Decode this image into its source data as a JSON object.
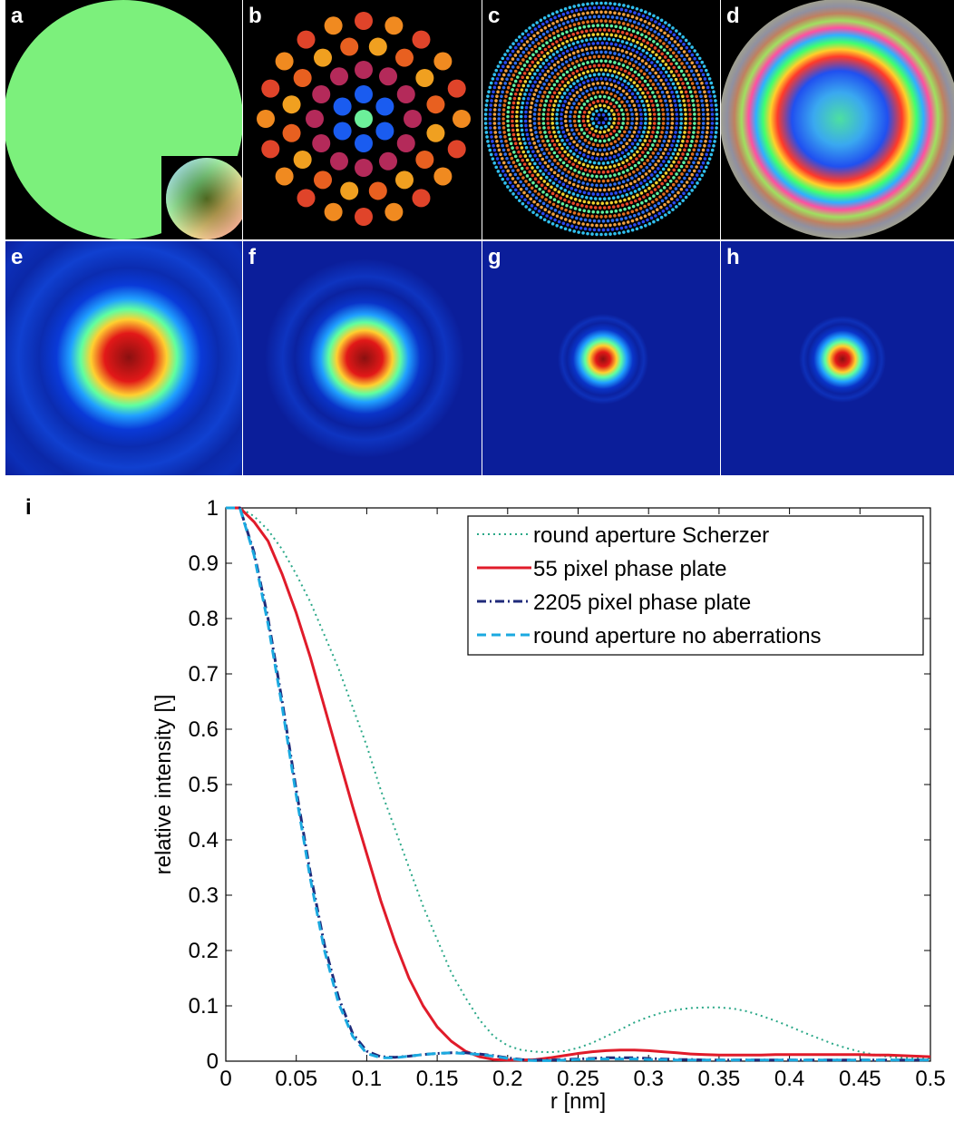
{
  "panels": {
    "a": "a",
    "b": "b",
    "c": "c",
    "d": "d",
    "e": "e",
    "f": "f",
    "g": "g",
    "h": "h",
    "i": "i"
  },
  "colors": {
    "background_top": "#000000",
    "background_bottom": "#0b1e9a",
    "aperture_green": "#7cf07c",
    "scherzer": "#2aa888",
    "pixel55": "#e01b2a",
    "pixel2205": "#1f2a7a",
    "no_aberrations": "#1aa9e0"
  },
  "chart_data": {
    "type": "line",
    "xlabel": "r [nm]",
    "ylabel": "relative intensity [\\]",
    "xlim": [
      0,
      0.5
    ],
    "ylim": [
      0,
      1
    ],
    "xticks": [
      0,
      0.05,
      0.1,
      0.15,
      0.2,
      0.25,
      0.3,
      0.35,
      0.4,
      0.45,
      0.5
    ],
    "xtick_labels": [
      "0",
      "0.05",
      "0.1",
      "0.15",
      "0.2",
      "0.25",
      "0.3",
      "0.35",
      "0.4",
      "0.45",
      "0.5"
    ],
    "yticks": [
      0,
      0.1,
      0.2,
      0.3,
      0.4,
      0.5,
      0.6,
      0.7,
      0.8,
      0.9,
      1
    ],
    "ytick_labels": [
      "0",
      "0.1",
      "0.2",
      "0.3",
      "0.4",
      "0.5",
      "0.6",
      "0.7",
      "0.8",
      "0.9",
      "1"
    ],
    "grid": false,
    "legend_position": "top-right",
    "series": [
      {
        "name": "round aperture Scherzer",
        "style": "dotted",
        "color": "#2aa888",
        "x": [
          0,
          0.01,
          0.02,
          0.03,
          0.04,
          0.05,
          0.06,
          0.07,
          0.08,
          0.09,
          0.1,
          0.11,
          0.12,
          0.13,
          0.14,
          0.15,
          0.16,
          0.17,
          0.18,
          0.19,
          0.2,
          0.21,
          0.22,
          0.23,
          0.24,
          0.25,
          0.26,
          0.27,
          0.28,
          0.29,
          0.3,
          0.31,
          0.32,
          0.33,
          0.34,
          0.35,
          0.36,
          0.37,
          0.38,
          0.39,
          0.4,
          0.41,
          0.42,
          0.43,
          0.44,
          0.45,
          0.46,
          0.47,
          0.48,
          0.49,
          0.5
        ],
        "y": [
          1,
          1,
          0.985,
          0.96,
          0.925,
          0.88,
          0.83,
          0.77,
          0.71,
          0.64,
          0.57,
          0.49,
          0.42,
          0.35,
          0.28,
          0.22,
          0.16,
          0.115,
          0.075,
          0.045,
          0.028,
          0.02,
          0.017,
          0.016,
          0.018,
          0.024,
          0.033,
          0.045,
          0.057,
          0.07,
          0.08,
          0.088,
          0.093,
          0.096,
          0.097,
          0.097,
          0.095,
          0.09,
          0.082,
          0.073,
          0.063,
          0.052,
          0.042,
          0.032,
          0.024,
          0.017,
          0.012,
          0.008,
          0.006,
          0.005,
          0.005
        ]
      },
      {
        "name": "55 pixel phase plate",
        "style": "solid",
        "color": "#e01b2a",
        "x": [
          0,
          0.01,
          0.02,
          0.03,
          0.04,
          0.05,
          0.06,
          0.07,
          0.08,
          0.09,
          0.1,
          0.11,
          0.12,
          0.13,
          0.14,
          0.15,
          0.16,
          0.17,
          0.18,
          0.19,
          0.2,
          0.21,
          0.22,
          0.23,
          0.24,
          0.25,
          0.26,
          0.27,
          0.28,
          0.29,
          0.3,
          0.31,
          0.32,
          0.33,
          0.34,
          0.35,
          0.36,
          0.37,
          0.38,
          0.39,
          0.4,
          0.41,
          0.42,
          0.43,
          0.44,
          0.45,
          0.46,
          0.47,
          0.48,
          0.49,
          0.5
        ],
        "y": [
          1,
          1,
          0.975,
          0.94,
          0.88,
          0.81,
          0.73,
          0.64,
          0.55,
          0.46,
          0.375,
          0.29,
          0.215,
          0.15,
          0.1,
          0.062,
          0.036,
          0.018,
          0.008,
          0.003,
          0.002,
          0.002,
          0.003,
          0.006,
          0.01,
          0.014,
          0.017,
          0.019,
          0.02,
          0.02,
          0.019,
          0.017,
          0.015,
          0.013,
          0.012,
          0.011,
          0.011,
          0.011,
          0.011,
          0.012,
          0.012,
          0.012,
          0.012,
          0.012,
          0.012,
          0.012,
          0.011,
          0.011,
          0.01,
          0.009,
          0.008
        ]
      },
      {
        "name": "2205 pixel phase plate",
        "style": "dashdot",
        "color": "#1f2a7a",
        "x": [
          0,
          0.01,
          0.02,
          0.03,
          0.04,
          0.05,
          0.06,
          0.07,
          0.08,
          0.09,
          0.1,
          0.11,
          0.12,
          0.13,
          0.14,
          0.15,
          0.16,
          0.17,
          0.18,
          0.19,
          0.2,
          0.21,
          0.22,
          0.23,
          0.24,
          0.25,
          0.26,
          0.27,
          0.28,
          0.29,
          0.3,
          0.31,
          0.32,
          0.33,
          0.34,
          0.35,
          0.36,
          0.37,
          0.38,
          0.39,
          0.4,
          0.41,
          0.42,
          0.43,
          0.44,
          0.45,
          0.46,
          0.47,
          0.48,
          0.49,
          0.5
        ],
        "y": [
          1,
          1,
          0.92,
          0.8,
          0.65,
          0.49,
          0.34,
          0.21,
          0.115,
          0.05,
          0.018,
          0.008,
          0.007,
          0.009,
          0.012,
          0.014,
          0.015,
          0.015,
          0.013,
          0.01,
          0.006,
          0.003,
          0.002,
          0.002,
          0.003,
          0.004,
          0.005,
          0.006,
          0.006,
          0.006,
          0.005,
          0.004,
          0.003,
          0.003,
          0.002,
          0.002,
          0.002,
          0.002,
          0.002,
          0.002,
          0.002,
          0.002,
          0.002,
          0.002,
          0.002,
          0.002,
          0.002,
          0.002,
          0.002,
          0.002,
          0.002
        ]
      },
      {
        "name": "round aperture no aberrations",
        "style": "dashed",
        "color": "#1aa9e0",
        "x": [
          0,
          0.01,
          0.02,
          0.03,
          0.04,
          0.05,
          0.06,
          0.07,
          0.08,
          0.09,
          0.1,
          0.11,
          0.12,
          0.13,
          0.14,
          0.15,
          0.16,
          0.17,
          0.18,
          0.19,
          0.2,
          0.21,
          0.22,
          0.23,
          0.24,
          0.25,
          0.26,
          0.27,
          0.28,
          0.29,
          0.3,
          0.31,
          0.32,
          0.33,
          0.34,
          0.35,
          0.36,
          0.37,
          0.38,
          0.39,
          0.4,
          0.41,
          0.42,
          0.43,
          0.44,
          0.45,
          0.46,
          0.47,
          0.48,
          0.49,
          0.5
        ],
        "y": [
          1,
          1,
          0.915,
          0.79,
          0.64,
          0.48,
          0.33,
          0.2,
          0.105,
          0.045,
          0.014,
          0.006,
          0.006,
          0.009,
          0.012,
          0.014,
          0.015,
          0.014,
          0.012,
          0.009,
          0.005,
          0.002,
          0.001,
          0.001,
          0.002,
          0.003,
          0.004,
          0.004,
          0.004,
          0.004,
          0.003,
          0.003,
          0.002,
          0.002,
          0.002,
          0.002,
          0.002,
          0.002,
          0.002,
          0.002,
          0.002,
          0.002,
          0.002,
          0.002,
          0.002,
          0.002,
          0.002,
          0.002,
          0.002,
          0.002,
          0.002
        ]
      }
    ]
  }
}
